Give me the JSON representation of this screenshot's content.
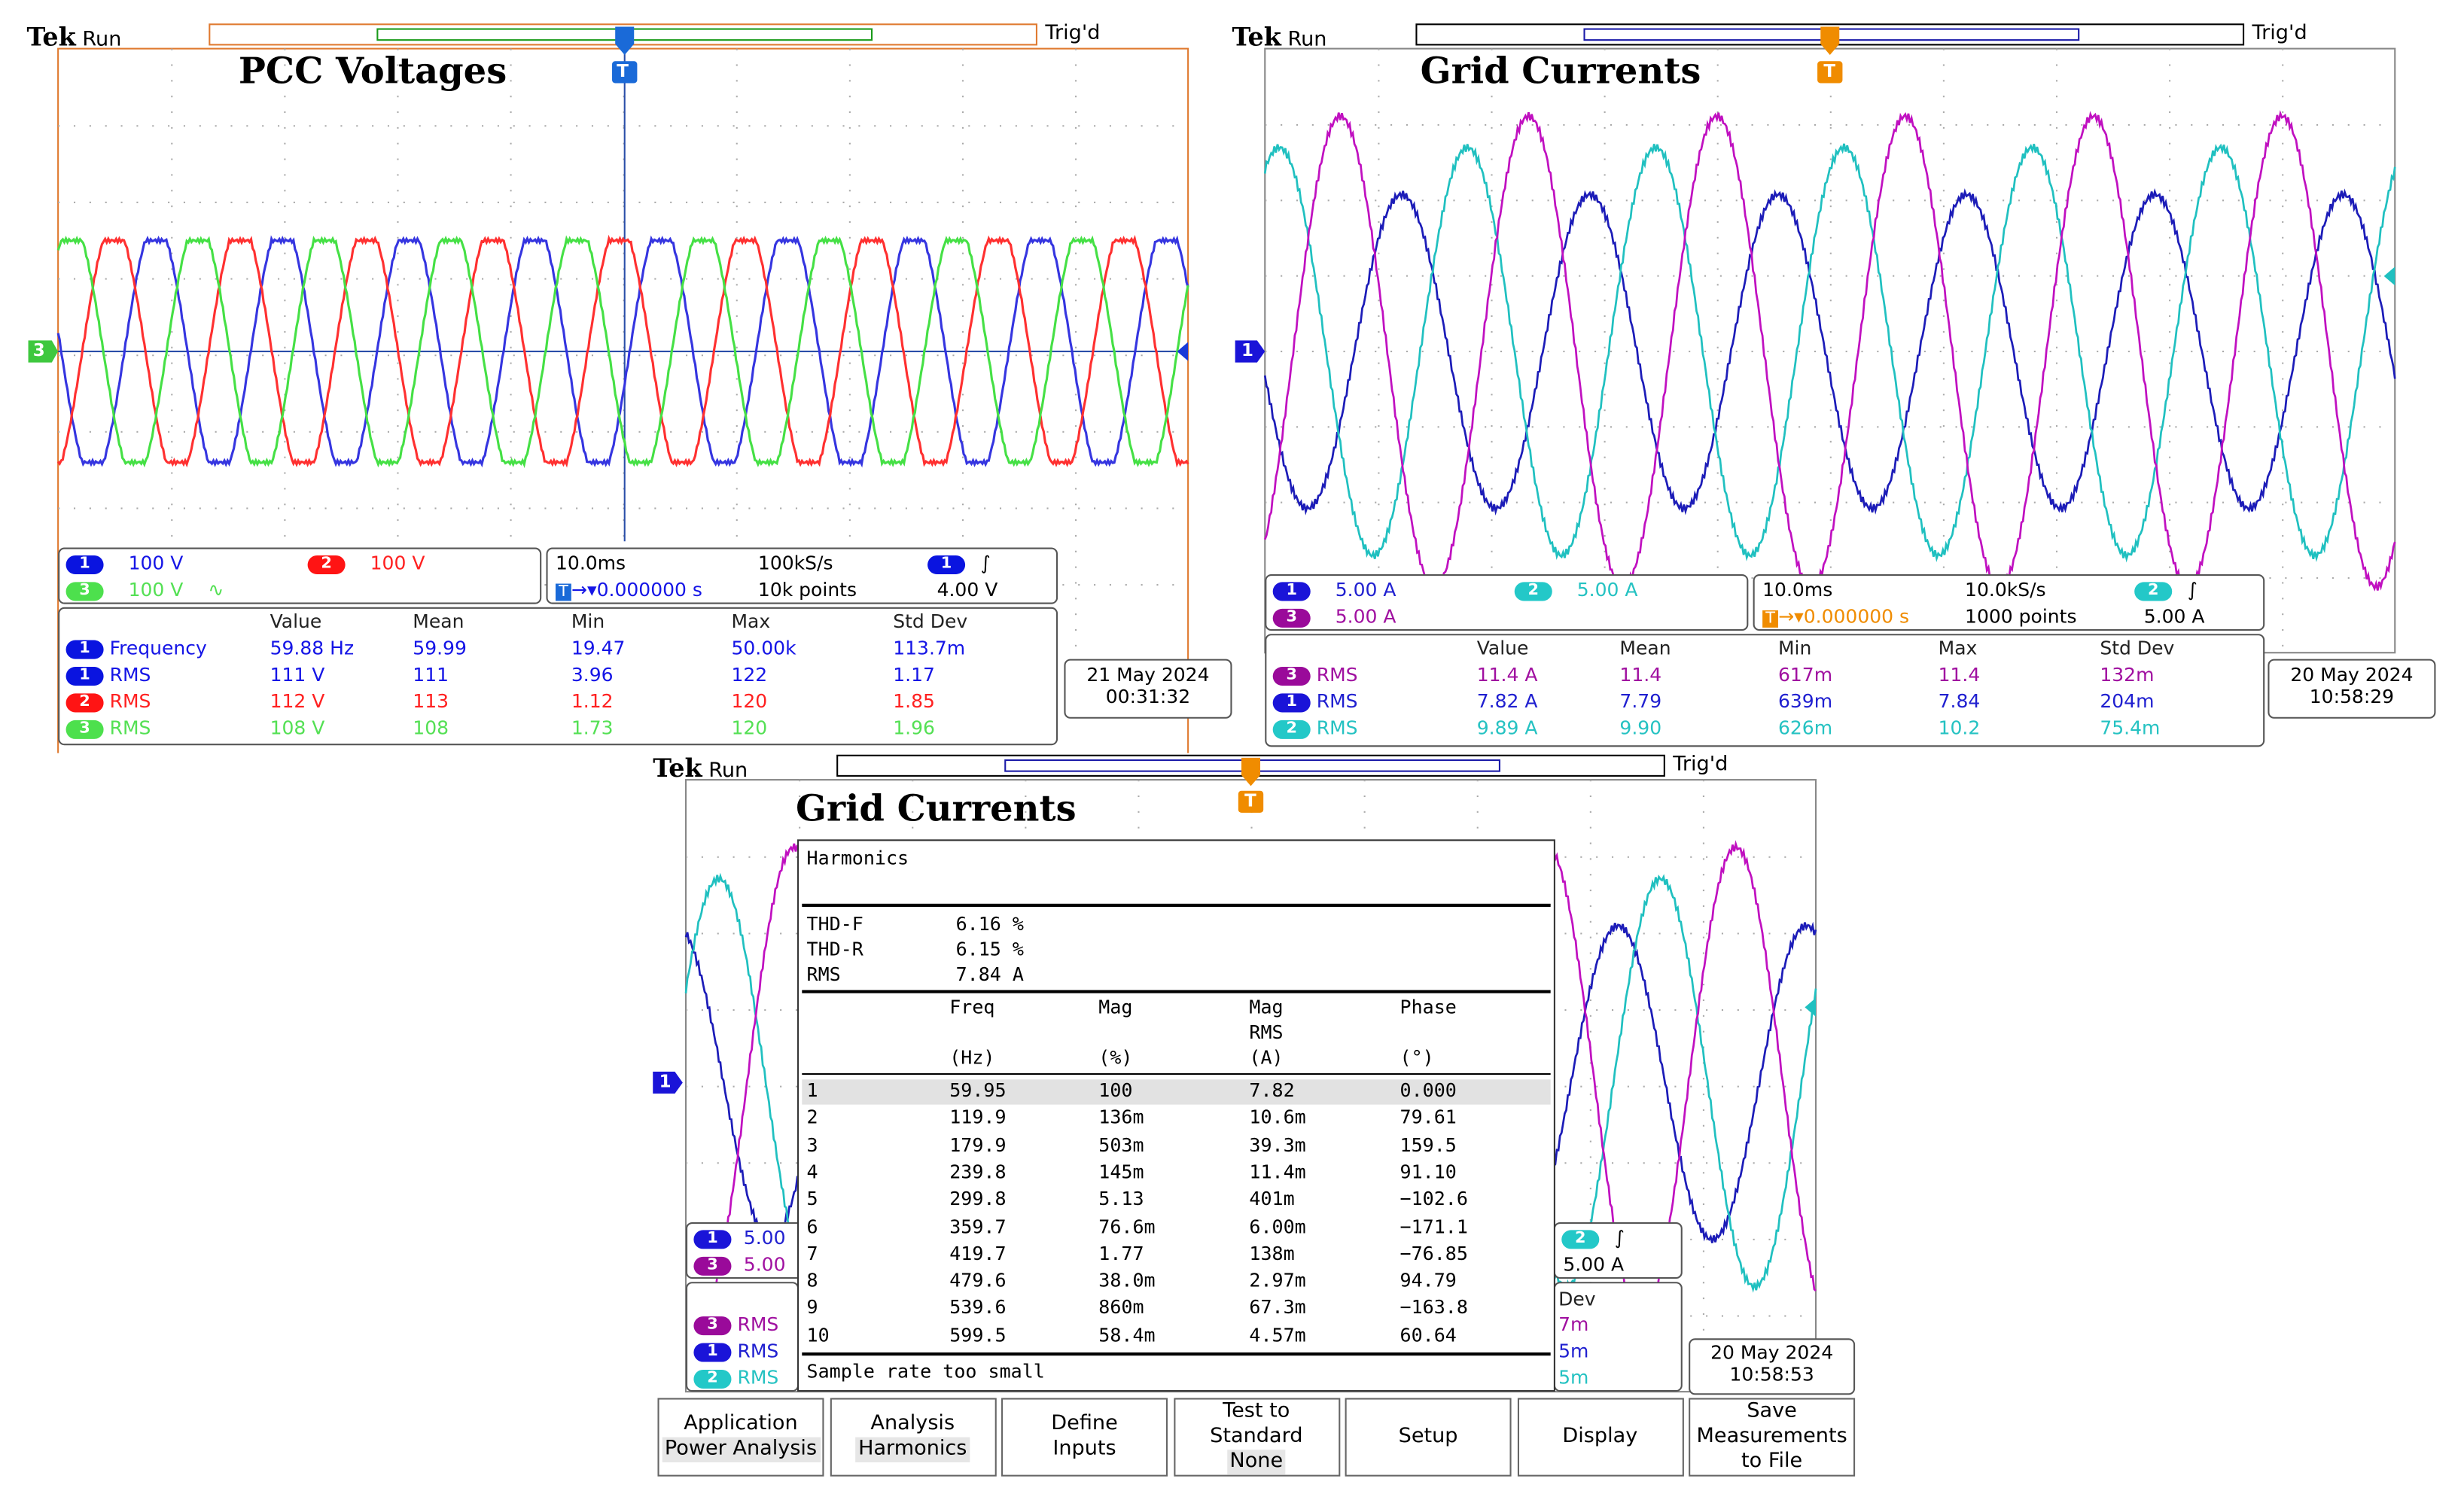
{
  "scope1": {
    "brand": "Tek",
    "state": "Run",
    "trig_status": "Trig'd",
    "title": "PCC Voltages",
    "trigger_marker": "T",
    "channels": [
      {
        "num": "1",
        "scale": "100 V"
      },
      {
        "num": "2",
        "scale": "100 V"
      },
      {
        "num": "3",
        "scale": "100 V",
        "coupling": "∿"
      }
    ],
    "timebase": "10.0ms",
    "sample_rate": "100kS/s",
    "position": "0.000000 s",
    "record": "10k points",
    "trigger": {
      "source": "1",
      "slope": "∫",
      "level": "4.00 V"
    },
    "meas_headers": [
      "Value",
      "Mean",
      "Min",
      "Max",
      "Std Dev"
    ],
    "measurements": [
      {
        "ch": "1",
        "name": "Frequency",
        "value": "59.88 Hz",
        "mean": "59.99",
        "min": "19.47",
        "max": "50.00k",
        "std": "113.7m"
      },
      {
        "ch": "1",
        "name": "RMS",
        "value": "111 V",
        "mean": "111",
        "min": "3.96",
        "max": "122",
        "std": "1.17"
      },
      {
        "ch": "2",
        "name": "RMS",
        "value": "112 V",
        "mean": "113",
        "min": "1.12",
        "max": "120",
        "std": "1.85"
      },
      {
        "ch": "3",
        "name": "RMS",
        "value": "108 V",
        "mean": "108",
        "min": "1.73",
        "max": "120",
        "std": "1.96"
      }
    ],
    "date": "21 May  2024",
    "time": "00:31:32",
    "ground_marker": "3"
  },
  "scope2": {
    "brand": "Tek",
    "state": "Run",
    "trig_status": "Trig'd",
    "title": "Grid Currents",
    "trigger_marker": "T",
    "channels": [
      {
        "num": "1",
        "scale": "5.00 A"
      },
      {
        "num": "2",
        "scale": "5.00 A"
      },
      {
        "num": "3",
        "scale": "5.00 A"
      }
    ],
    "timebase": "10.0ms",
    "sample_rate": "10.0kS/s",
    "position": "0.000000 s",
    "record": "1000 points",
    "trigger": {
      "source": "2",
      "slope": "∫",
      "level": "5.00 A"
    },
    "meas_headers": [
      "Value",
      "Mean",
      "Min",
      "Max",
      "Std Dev"
    ],
    "measurements": [
      {
        "ch": "3",
        "name": "RMS",
        "value": "11.4 A",
        "mean": "11.4",
        "min": "617m",
        "max": "11.4",
        "std": "132m"
      },
      {
        "ch": "1",
        "name": "RMS",
        "value": "7.82 A",
        "mean": "7.79",
        "min": "639m",
        "max": "7.84",
        "std": "204m"
      },
      {
        "ch": "2",
        "name": "RMS",
        "value": "9.89 A",
        "mean": "9.90",
        "min": "626m",
        "max": "10.2",
        "std": "75.4m"
      }
    ],
    "date": "20 May  2024",
    "time": "10:58:29",
    "ground_marker": "1"
  },
  "scope3": {
    "brand": "Tek",
    "state": "Run",
    "trig_status": "Trig'd",
    "title": "Grid Currents",
    "trigger_marker": "T",
    "ch1_partial": "5.00",
    "ch3_partial": "5.00",
    "trig_partial": {
      "source": "2",
      "slope": "∫",
      "level": "5.00 A"
    },
    "meas_partial": {
      "header": "Dev",
      "rows": [
        {
          "ch": "3",
          "name": "RMS",
          "tail": "7m"
        },
        {
          "ch": "1",
          "name": "RMS",
          "tail": "5m"
        },
        {
          "ch": "2",
          "name": "RMS",
          "tail": "5m"
        }
      ]
    },
    "date": "20 May  2024",
    "time": "10:58:53",
    "ground_marker": "1",
    "harmonics": {
      "title": "Harmonics",
      "summary": [
        {
          "label": "THD-F",
          "value": "6.16 %"
        },
        {
          "label": "THD-R",
          "value": "6.15 %"
        },
        {
          "label": "RMS",
          "value": "7.84 A"
        }
      ],
      "columns": [
        {
          "name": "Freq",
          "unit": "(Hz)"
        },
        {
          "name": "Mag",
          "unit": "(%)"
        },
        {
          "name": "Mag RMS",
          "unit": "(A)"
        },
        {
          "name": "Phase",
          "unit": "(°)"
        }
      ],
      "col3_line1": "Mag",
      "col3_line2": "RMS",
      "rows": [
        [
          "1",
          "59.95",
          "100",
          "7.82",
          "0.000"
        ],
        [
          "2",
          "119.9",
          "136m",
          "10.6m",
          "79.61"
        ],
        [
          "3",
          "179.9",
          "503m",
          "39.3m",
          "159.5"
        ],
        [
          "4",
          "239.8",
          "145m",
          "11.4m",
          "91.10"
        ],
        [
          "5",
          "299.8",
          "5.13",
          "401m",
          "−102.6"
        ],
        [
          "6",
          "359.7",
          "76.6m",
          "6.00m",
          "−171.1"
        ],
        [
          "7",
          "419.7",
          "1.77",
          "138m",
          "−76.85"
        ],
        [
          "8",
          "479.6",
          "38.0m",
          "2.97m",
          "94.79"
        ],
        [
          "9",
          "539.6",
          "860m",
          "67.3m",
          "−163.8"
        ],
        [
          "10",
          "599.5",
          "58.4m",
          "4.57m",
          "60.64"
        ]
      ],
      "footer": "Sample rate too small"
    },
    "menu": [
      {
        "label": "Application",
        "sub": "Power Analysis"
      },
      {
        "label": "Analysis",
        "sub": "Harmonics"
      },
      {
        "label": "Define\nInputs",
        "sub": ""
      },
      {
        "label": "Test to\nStandard",
        "sub": "None"
      },
      {
        "label": "Setup",
        "sub": ""
      },
      {
        "label": "Display",
        "sub": ""
      },
      {
        "label": "Save\nMeasurements\nto File",
        "sub": ""
      }
    ]
  },
  "colors": {
    "ch1_v": "#2a2ae6",
    "ch2_v": "#ff2a2a",
    "ch3_v": "#3ee03e",
    "ch1_i": "#1c1cb8",
    "ch2_i": "#1fc3c3",
    "ch3_i": "#c014c0",
    "frame_orange": "#e07a30"
  }
}
